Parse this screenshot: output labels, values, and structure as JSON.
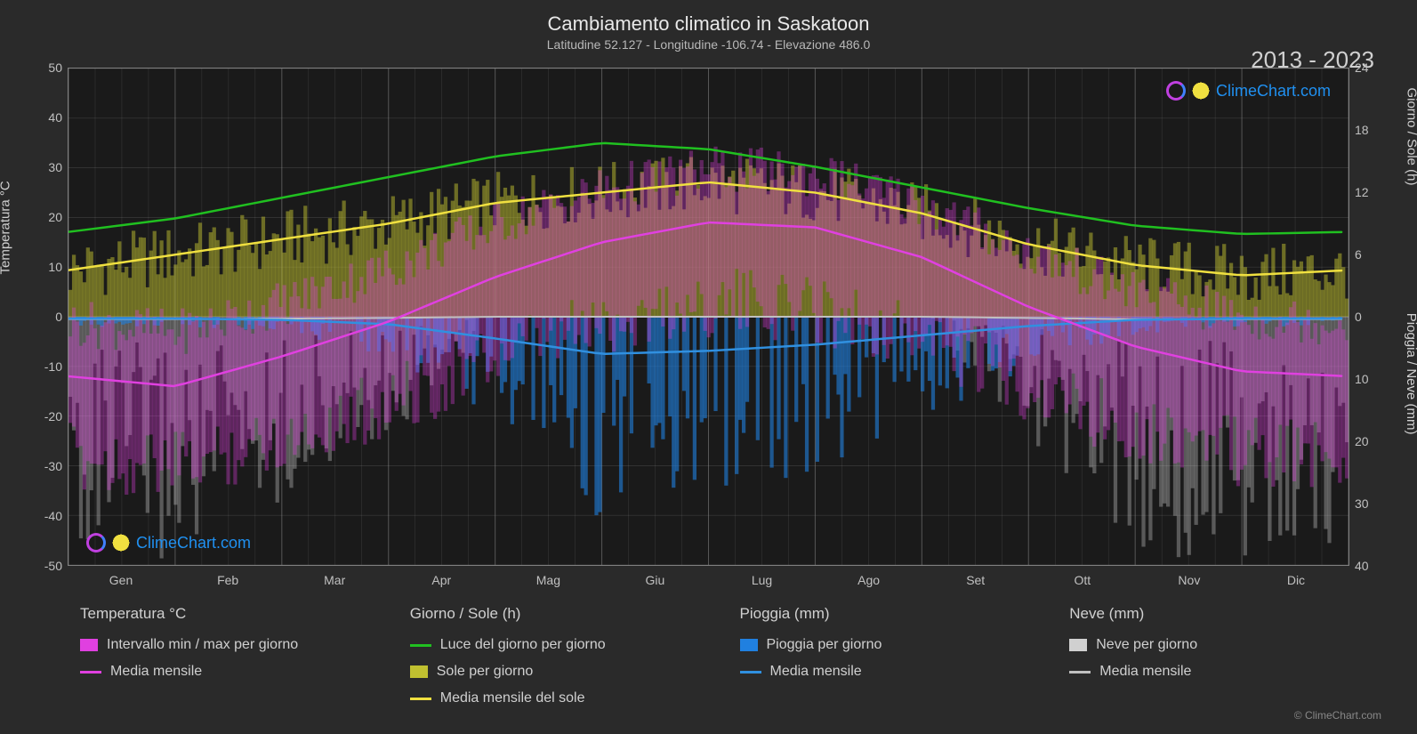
{
  "title": "Cambiamento climatico in Saskatoon",
  "subtitle": "Latitudine 52.127 - Longitudine -106.74 - Elevazione 486.0",
  "year_range": "2013 - 2023",
  "copyright": "© ClimeChart.com",
  "watermark_text": "ClimeChart.com",
  "chart": {
    "type": "climate-multi-axis-line-bar",
    "background_color": "#1a1a1a",
    "page_background": "#2a2a2a",
    "grid_color": "rgba(160,160,160,0.25)",
    "grid_color_strong": "rgba(200,200,200,0.35)",
    "border_color": "#808080",
    "months": [
      "Gen",
      "Feb",
      "Mar",
      "Apr",
      "Mag",
      "Giu",
      "Lug",
      "Ago",
      "Set",
      "Ott",
      "Nov",
      "Dic"
    ],
    "left_axis": {
      "label": "Temperatura °C",
      "min": -50,
      "max": 50,
      "step": 10,
      "ticks": [
        50,
        40,
        30,
        20,
        10,
        0,
        -10,
        -20,
        -30,
        -40,
        -50
      ]
    },
    "right_axis_top": {
      "label": "Giorno / Sole (h)",
      "min": 0,
      "max": 24,
      "step": 6,
      "ticks": [
        24,
        18,
        12,
        6,
        0
      ]
    },
    "right_axis_bottom": {
      "label": "Pioggia / Neve (mm)",
      "min": 0,
      "max": 40,
      "step": 10,
      "ticks": [
        0,
        10,
        20,
        30,
        40
      ]
    },
    "series": {
      "daylight_line": {
        "label": "Luce del giorno per giorno",
        "color": "#20c020",
        "width": 2.5,
        "values_hours": [
          8.2,
          9.5,
          11.5,
          13.5,
          15.5,
          16.8,
          16.2,
          14.5,
          12.5,
          10.5,
          8.8,
          8.0
        ]
      },
      "sun_avg_line": {
        "label": "Media mensile del sole",
        "color": "#f0e040",
        "width": 2.5,
        "values_hours": [
          4.5,
          6.0,
          7.5,
          9.0,
          11.0,
          12.0,
          13.0,
          12.0,
          10.0,
          7.0,
          5.0,
          4.0
        ]
      },
      "temp_avg_line": {
        "label": "Media mensile",
        "color": "#e040e0",
        "width": 2.5,
        "values_c": [
          -12,
          -14,
          -8,
          -1,
          8,
          15,
          19,
          18,
          12,
          2,
          -6,
          -11
        ]
      },
      "rain_avg_line": {
        "label": "Media mensile",
        "color": "#3090e0",
        "width": 2.5,
        "values_mm": [
          0.3,
          0.3,
          0.5,
          1.2,
          3.5,
          6.0,
          5.5,
          4.5,
          3.0,
          1.5,
          0.5,
          0.3
        ]
      },
      "snow_avg_line": {
        "label": "Media mensile",
        "color": "#c0c0c0",
        "width": 2,
        "values_mm": [
          0.4,
          0.4,
          0.3,
          0.2,
          0.0,
          0.0,
          0.0,
          0.0,
          0.0,
          0.2,
          0.4,
          0.4
        ]
      },
      "temp_range_bars": {
        "label": "Intervallo min / max per giorno",
        "color": "#e040e0",
        "opacity": 0.35
      },
      "sun_bars": {
        "label": "Sole per giorno",
        "color": "#c0c030",
        "opacity": 0.5
      },
      "rain_bars": {
        "label": "Pioggia per giorno",
        "color": "#2080e0",
        "opacity": 0.6
      },
      "snow_bars": {
        "label": "Neve per giorno",
        "color": "#d0d0d0",
        "opacity": 0.35
      }
    },
    "daily_synthetic": {
      "count": 365,
      "temp_min_amplitude": 18,
      "temp_max_amplitude": 12,
      "sun_noise": 3,
      "rain_max_mm": 25,
      "snow_max_mm": 30
    }
  },
  "legend": {
    "cols": [
      {
        "header": "Temperatura °C",
        "items": [
          {
            "type": "swatch",
            "color": "#e040e0",
            "label": "Intervallo min / max per giorno"
          },
          {
            "type": "line",
            "color": "#e040e0",
            "label": "Media mensile"
          }
        ]
      },
      {
        "header": "Giorno / Sole (h)",
        "items": [
          {
            "type": "line",
            "color": "#20c020",
            "label": "Luce del giorno per giorno"
          },
          {
            "type": "swatch",
            "color": "#c0c030",
            "label": "Sole per giorno"
          },
          {
            "type": "line",
            "color": "#f0e040",
            "label": "Media mensile del sole"
          }
        ]
      },
      {
        "header": "Pioggia (mm)",
        "items": [
          {
            "type": "swatch",
            "color": "#2080e0",
            "label": "Pioggia per giorno"
          },
          {
            "type": "line",
            "color": "#3090e0",
            "label": "Media mensile"
          }
        ]
      },
      {
        "header": "Neve (mm)",
        "items": [
          {
            "type": "swatch",
            "color": "#d0d0d0",
            "label": "Neve per giorno"
          },
          {
            "type": "line",
            "color": "#c0c0c0",
            "label": "Media mensile"
          }
        ]
      }
    ]
  }
}
